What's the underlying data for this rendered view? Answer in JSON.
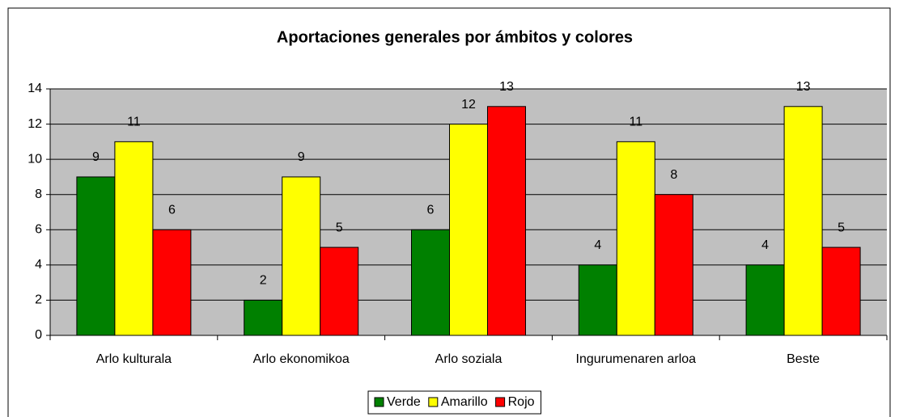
{
  "chart_data": {
    "type": "bar",
    "title": "Aportaciones generales por ámbitos y colores",
    "categories": [
      "Arlo kulturala",
      "Arlo ekonomikoa",
      "Arlo soziala",
      "Ingurumenaren arloa",
      "Beste"
    ],
    "series": [
      {
        "name": "Verde",
        "color": "#008000",
        "values": [
          9,
          2,
          6,
          4,
          4
        ]
      },
      {
        "name": "Amarillo",
        "color": "#ffff00",
        "values": [
          11,
          9,
          12,
          11,
          13
        ]
      },
      {
        "name": "Rojo",
        "color": "#ff0000",
        "values": [
          6,
          5,
          13,
          8,
          5
        ]
      }
    ],
    "ylim": [
      0,
      14
    ],
    "yticks": [
      0,
      2,
      4,
      6,
      8,
      10,
      12,
      14
    ],
    "grid": true,
    "legend": "bottom"
  }
}
